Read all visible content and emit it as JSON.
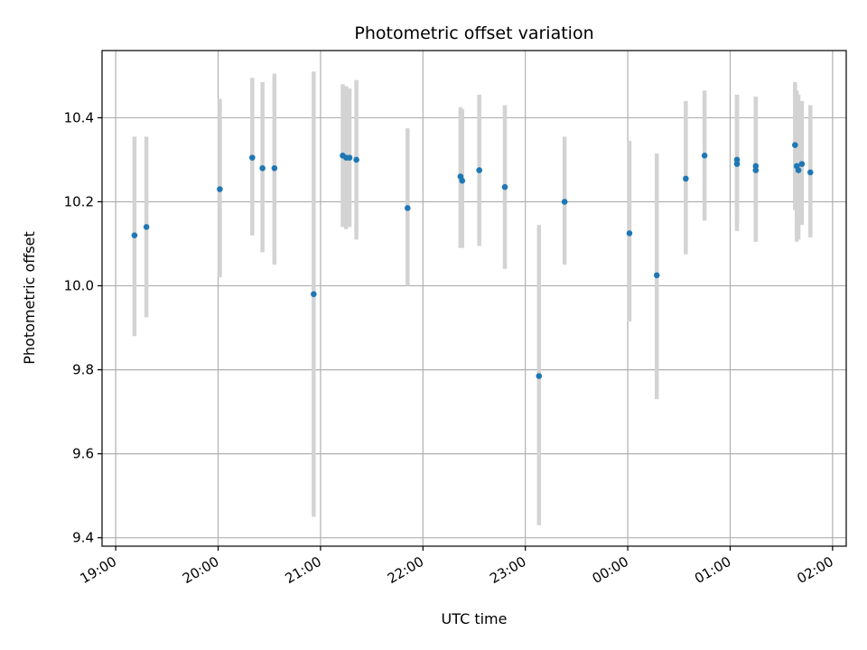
{
  "chart_data": {
    "type": "scatter",
    "title": "Photometric offset variation",
    "xlabel": "UTC time",
    "ylabel": "Photometric offset",
    "x_ticks": [
      "19:00",
      "20:00",
      "21:00",
      "22:00",
      "23:00",
      "00:00",
      "01:00",
      "02:00"
    ],
    "y_ticks": [
      "9.4",
      "9.6",
      "9.8",
      "10.0",
      "10.2",
      "10.4"
    ],
    "xlim": [
      "18:52",
      "02:08"
    ],
    "ylim": [
      9.38,
      10.56
    ],
    "grid": true,
    "colors": {
      "point": "#1f77b4",
      "errorbar": "#d3d3d3",
      "grid": "#b0b0b0"
    },
    "points": [
      {
        "t": "19:11",
        "y": 10.12,
        "lo": 9.88,
        "hi": 10.355
      },
      {
        "t": "19:18",
        "y": 10.14,
        "lo": 9.925,
        "hi": 10.355
      },
      {
        "t": "20:01",
        "y": 10.23,
        "lo": 10.02,
        "hi": 10.445
      },
      {
        "t": "20:20",
        "y": 10.305,
        "lo": 10.12,
        "hi": 10.495
      },
      {
        "t": "20:26",
        "y": 10.28,
        "lo": 10.08,
        "hi": 10.485
      },
      {
        "t": "20:33",
        "y": 10.28,
        "lo": 10.05,
        "hi": 10.505
      },
      {
        "t": "20:56",
        "y": 9.98,
        "lo": 9.45,
        "hi": 10.51
      },
      {
        "t": "21:13",
        "y": 10.31,
        "lo": 10.14,
        "hi": 10.48
      },
      {
        "t": "21:15",
        "y": 10.305,
        "lo": 10.135,
        "hi": 10.475
      },
      {
        "t": "21:17",
        "y": 10.305,
        "lo": 10.14,
        "hi": 10.47
      },
      {
        "t": "21:21",
        "y": 10.3,
        "lo": 10.11,
        "hi": 10.49
      },
      {
        "t": "21:51",
        "y": 10.185,
        "lo": 10.0,
        "hi": 10.375
      },
      {
        "t": "22:22",
        "y": 10.26,
        "lo": 10.09,
        "hi": 10.425
      },
      {
        "t": "22:23",
        "y": 10.25,
        "lo": 10.09,
        "hi": 10.42
      },
      {
        "t": "22:33",
        "y": 10.275,
        "lo": 10.095,
        "hi": 10.455
      },
      {
        "t": "22:48",
        "y": 10.235,
        "lo": 10.04,
        "hi": 10.43
      },
      {
        "t": "23:08",
        "y": 9.785,
        "lo": 9.43,
        "hi": 10.145
      },
      {
        "t": "23:23",
        "y": 10.2,
        "lo": 10.05,
        "hi": 10.355
      },
      {
        "t": "00:01",
        "y": 10.125,
        "lo": 9.915,
        "hi": 10.345
      },
      {
        "t": "00:17",
        "y": 10.025,
        "lo": 9.73,
        "hi": 10.315
      },
      {
        "t": "00:34",
        "y": 10.255,
        "lo": 10.075,
        "hi": 10.44
      },
      {
        "t": "00:45",
        "y": 10.31,
        "lo": 10.155,
        "hi": 10.465
      },
      {
        "t": "01:04",
        "y": 10.29,
        "lo": 10.13,
        "hi": 10.455
      },
      {
        "t": "01:04",
        "y": 10.3,
        "lo": 10.15,
        "hi": 10.455
      },
      {
        "t": "01:15",
        "y": 10.285,
        "lo": 10.105,
        "hi": 10.45
      },
      {
        "t": "01:15",
        "y": 10.275,
        "lo": 10.105,
        "hi": 10.45
      },
      {
        "t": "01:38",
        "y": 10.335,
        "lo": 10.18,
        "hi": 10.485
      },
      {
        "t": "01:39",
        "y": 10.285,
        "lo": 10.105,
        "hi": 10.465
      },
      {
        "t": "01:40",
        "y": 10.275,
        "lo": 10.11,
        "hi": 10.455
      },
      {
        "t": "01:42",
        "y": 10.29,
        "lo": 10.145,
        "hi": 10.44
      },
      {
        "t": "01:47",
        "y": 10.27,
        "lo": 10.115,
        "hi": 10.43
      }
    ]
  }
}
